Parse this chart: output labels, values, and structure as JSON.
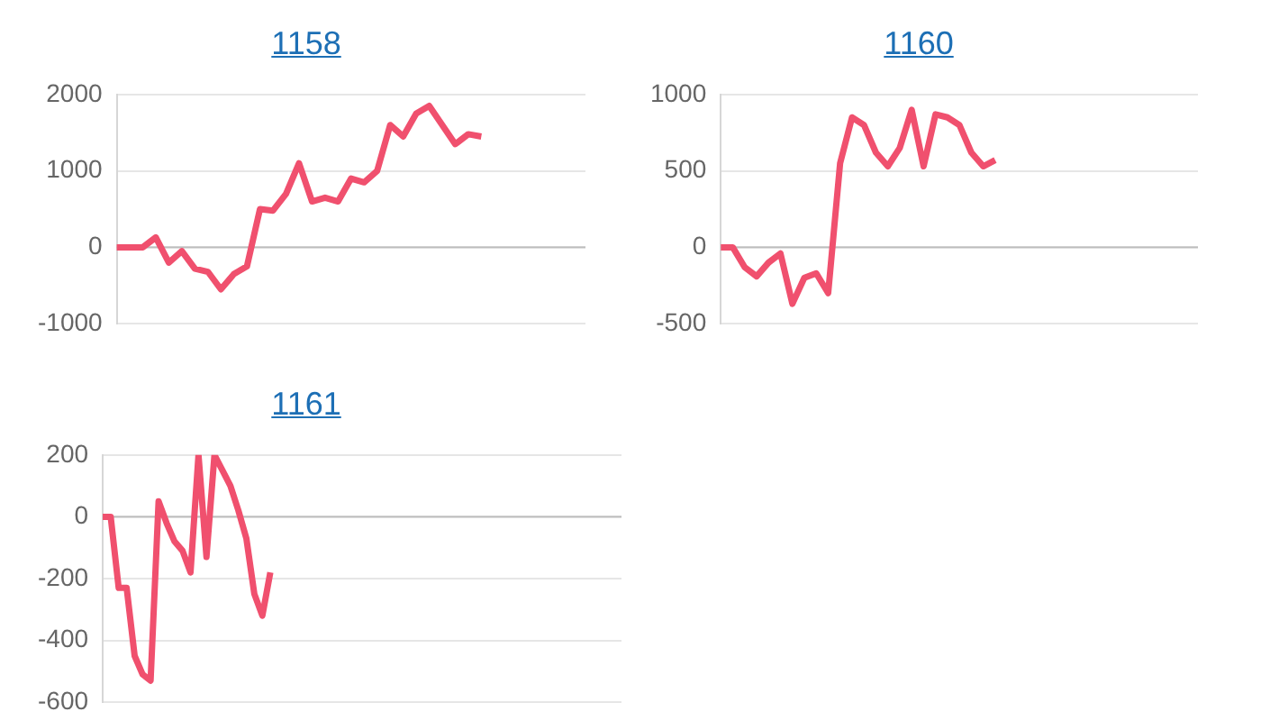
{
  "chart_data": [
    {
      "type": "line",
      "title": "1158",
      "categories": [
        null,
        null,
        null,
        null,
        null,
        null,
        null,
        null,
        null,
        null,
        null,
        null,
        null,
        null,
        null,
        null,
        null,
        null,
        null,
        null,
        null,
        null,
        null,
        null,
        null,
        null,
        null,
        null,
        null,
        null,
        null,
        null,
        null,
        null,
        null,
        null,
        null
      ],
      "series": [
        {
          "color": "#f0506e",
          "values": [
            0,
            0,
            0,
            130,
            -200,
            -50,
            -280,
            -320,
            -550,
            -350,
            -250,
            500,
            480,
            700,
            1100,
            600,
            650,
            600,
            900,
            850,
            1000,
            1600,
            1450,
            1750,
            1850,
            1600,
            1350,
            1480,
            1450,
            null,
            null,
            null,
            null,
            null,
            null,
            null,
            null
          ]
        }
      ],
      "ylim": [
        -1000,
        2000
      ],
      "yticks": [
        -1000,
        0,
        1000,
        2000
      ],
      "ref_lines": [
        {
          "axis": "y",
          "value": 0,
          "color": "#bdbdbd"
        }
      ],
      "grid": "y",
      "legend": false,
      "marker": "none",
      "tick_labels": "y"
    },
    {
      "type": "line",
      "title": "1160",
      "categories": [
        null,
        null,
        null,
        null,
        null,
        null,
        null,
        null,
        null,
        null,
        null,
        null,
        null,
        null,
        null,
        null,
        null,
        null,
        null,
        null,
        null,
        null,
        null,
        null,
        null,
        null,
        null,
        null,
        null,
        null,
        null,
        null,
        null,
        null,
        null,
        null,
        null,
        null,
        null,
        null,
        null
      ],
      "series": [
        {
          "color": "#f0506e",
          "values": [
            0,
            0,
            -130,
            -190,
            -100,
            -40,
            -370,
            -200,
            -170,
            -300,
            550,
            850,
            800,
            620,
            530,
            650,
            900,
            530,
            870,
            850,
            800,
            620,
            530,
            570,
            null,
            null,
            null,
            null,
            null,
            null,
            null,
            null,
            null,
            null,
            null,
            null,
            null,
            null,
            null,
            null,
            null
          ]
        }
      ],
      "ylim": [
        -500,
        1000
      ],
      "yticks": [
        -500,
        0,
        500,
        1000
      ],
      "ref_lines": [
        {
          "axis": "y",
          "value": 0,
          "color": "#bdbdbd"
        }
      ],
      "grid": "y",
      "legend": false,
      "marker": "none",
      "tick_labels": "y"
    },
    {
      "type": "line",
      "title": "1161",
      "categories": [
        null,
        null,
        null,
        null,
        null,
        null,
        null,
        null,
        null,
        null,
        null,
        null,
        null,
        null,
        null,
        null,
        null,
        null,
        null,
        null,
        null,
        null,
        null,
        null,
        null,
        null,
        null,
        null,
        null,
        null,
        null,
        null,
        null,
        null,
        null,
        null,
        null,
        null,
        null,
        null,
        null,
        null,
        null,
        null,
        null,
        null,
        null,
        null,
        null,
        null,
        null,
        null,
        null,
        null,
        null,
        null,
        null,
        null,
        null,
        null,
        null,
        null,
        null,
        null,
        null,
        null
      ],
      "series": [
        {
          "color": "#f0506e",
          "values": [
            0,
            0,
            -230,
            -230,
            -450,
            -510,
            -530,
            50,
            -20,
            -80,
            -110,
            -180,
            200,
            -130,
            200,
            150,
            100,
            20,
            -70,
            -250,
            -320,
            -180,
            null,
            null,
            null,
            null,
            null,
            null,
            null,
            null,
            null,
            null,
            null,
            null,
            null,
            null,
            null,
            null,
            null,
            null,
            null,
            null,
            null,
            null,
            null,
            null,
            null,
            null,
            null,
            null,
            null,
            null,
            null,
            null,
            null,
            null,
            null,
            null,
            null,
            null,
            null,
            null,
            null,
            null,
            null,
            null
          ]
        }
      ],
      "ylim": [
        -600,
        200
      ],
      "yticks": [
        -600,
        -400,
        -200,
        0,
        200
      ],
      "ref_lines": [
        {
          "axis": "y",
          "value": 0,
          "color": "#bdbdbd"
        }
      ],
      "grid": "y",
      "legend": false,
      "marker": "none",
      "tick_labels": "y"
    }
  ]
}
